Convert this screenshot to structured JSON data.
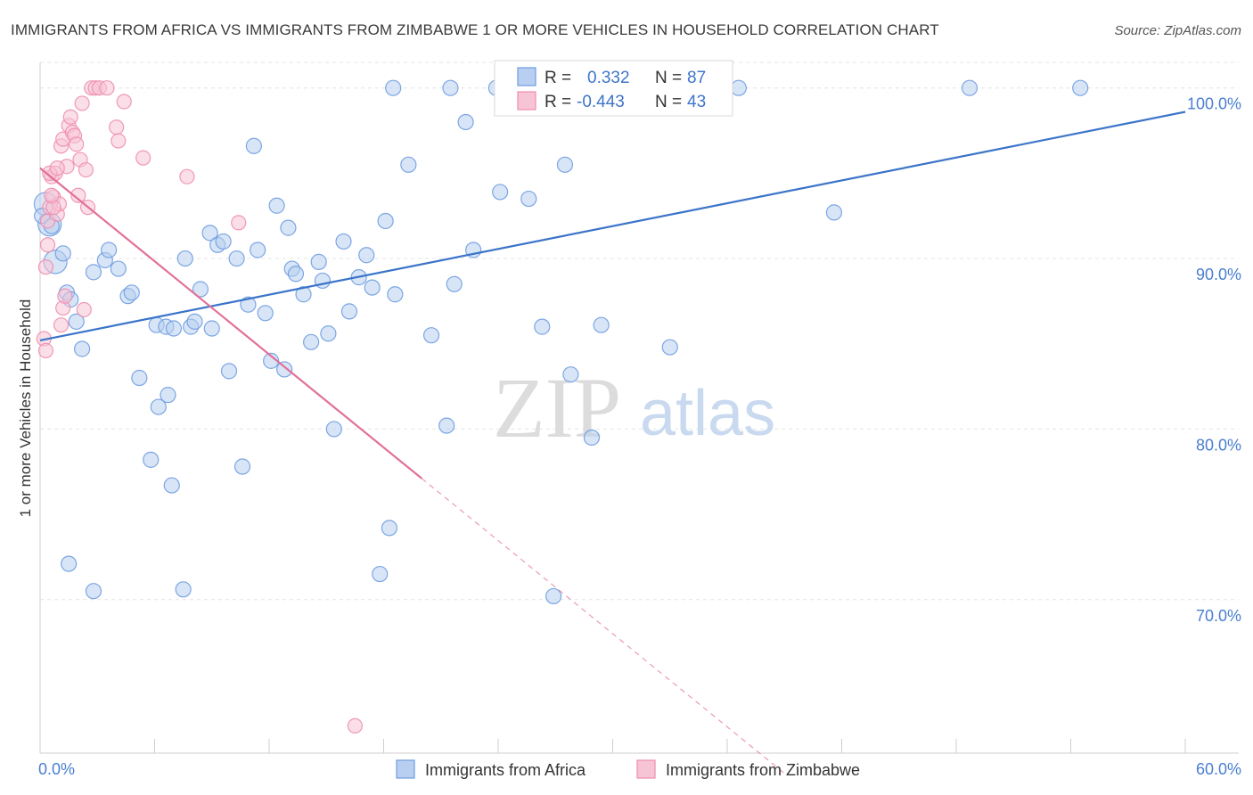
{
  "chart_data": {
    "type": "scatter",
    "title": "IMMIGRANTS FROM AFRICA VS IMMIGRANTS FROM ZIMBABWE 1 OR MORE VEHICLES IN HOUSEHOLD CORRELATION CHART",
    "source": "Source: ZipAtlas.com",
    "ylabel": "1 or more Vehicles in Household",
    "xlabel": "",
    "xlim": [
      0,
      60
    ],
    "ylim": [
      61,
      101.5
    ],
    "x_tick_labels": [
      "0.0%",
      "60.0%"
    ],
    "y_ticks": [
      70,
      80,
      90,
      100
    ],
    "y_tick_labels": [
      "70.0%",
      "80.0%",
      "90.0%",
      "100.0%"
    ],
    "grid": true,
    "legend_position": "top-center",
    "legend": [
      {
        "r_label": "R =",
        "r_value": "0.332",
        "n_label": "N =",
        "n_value": "87"
      },
      {
        "r_label": "R =",
        "r_value": "-0.443",
        "n_label": "N =",
        "n_value": "43"
      }
    ],
    "watermark": {
      "zip": "ZIP",
      "atlas": "atlas"
    },
    "series": [
      {
        "name": "Immigrants from Africa",
        "color": "#6f9de0",
        "fill": "#b8cff1",
        "trend": {
          "x": [
            0.0,
            60.0
          ],
          "y": [
            85.2,
            98.6
          ],
          "dashed_after": null
        },
        "points": [
          [
            0.3,
            93.2
          ],
          [
            0.5,
            92.0
          ],
          [
            0.8,
            89.8
          ],
          [
            1.2,
            90.3
          ],
          [
            1.4,
            88.0
          ],
          [
            1.6,
            87.6
          ],
          [
            1.9,
            86.3
          ],
          [
            2.2,
            84.7
          ],
          [
            2.8,
            89.2
          ],
          [
            3.4,
            89.9
          ],
          [
            3.6,
            90.5
          ],
          [
            4.1,
            89.4
          ],
          [
            4.6,
            87.8
          ],
          [
            4.8,
            88.0
          ],
          [
            5.2,
            83.0
          ],
          [
            5.8,
            78.2
          ],
          [
            6.1,
            86.1
          ],
          [
            6.6,
            86.0
          ],
          [
            6.9,
            76.7
          ],
          [
            7.0,
            85.9
          ],
          [
            7.6,
            90.0
          ],
          [
            7.9,
            86.0
          ],
          [
            8.1,
            86.3
          ],
          [
            8.4,
            88.2
          ],
          [
            8.9,
            91.5
          ],
          [
            9.3,
            90.8
          ],
          [
            9.6,
            91.0
          ],
          [
            9.9,
            83.4
          ],
          [
            10.3,
            90.0
          ],
          [
            10.6,
            77.8
          ],
          [
            10.9,
            87.3
          ],
          [
            11.2,
            96.6
          ],
          [
            11.4,
            90.5
          ],
          [
            11.8,
            86.8
          ],
          [
            12.1,
            84.0
          ],
          [
            12.4,
            93.1
          ],
          [
            12.8,
            83.5
          ],
          [
            13.0,
            91.8
          ],
          [
            13.2,
            89.4
          ],
          [
            13.4,
            89.1
          ],
          [
            13.8,
            87.9
          ],
          [
            14.2,
            85.1
          ],
          [
            14.6,
            89.8
          ],
          [
            14.8,
            88.7
          ],
          [
            15.1,
            85.6
          ],
          [
            15.4,
            80.0
          ],
          [
            15.9,
            91.0
          ],
          [
            16.2,
            86.9
          ],
          [
            16.7,
            88.9
          ],
          [
            17.1,
            90.2
          ],
          [
            17.4,
            88.3
          ],
          [
            17.8,
            71.5
          ],
          [
            18.1,
            92.2
          ],
          [
            18.3,
            74.2
          ],
          [
            18.6,
            87.9
          ],
          [
            19.3,
            95.5
          ],
          [
            20.5,
            85.5
          ],
          [
            21.3,
            80.2
          ],
          [
            21.7,
            88.5
          ],
          [
            22.3,
            98.0
          ],
          [
            22.7,
            90.5
          ],
          [
            24.1,
            93.9
          ],
          [
            25.6,
            93.5
          ],
          [
            26.3,
            86.0
          ],
          [
            26.9,
            70.2
          ],
          [
            27.5,
            95.5
          ],
          [
            27.8,
            83.2
          ],
          [
            28.9,
            79.5
          ],
          [
            29.4,
            86.1
          ],
          [
            33.0,
            84.8
          ],
          [
            36.6,
            100.0
          ],
          [
            41.6,
            92.7
          ],
          [
            48.7,
            100.0
          ],
          [
            54.5,
            100.0
          ],
          [
            18.5,
            100.0
          ],
          [
            21.5,
            100.0
          ],
          [
            25.2,
            100.0
          ],
          [
            23.9,
            100.0
          ],
          [
            35.0,
            100.0
          ],
          [
            1.5,
            72.1
          ],
          [
            2.8,
            70.5
          ],
          [
            6.2,
            81.3
          ],
          [
            6.7,
            82.0
          ],
          [
            7.5,
            70.6
          ],
          [
            9.0,
            85.9
          ],
          [
            0.1,
            92.5
          ],
          [
            0.6,
            91.9
          ]
        ]
      },
      {
        "name": "Immigrants from Zimbabwe",
        "color": "#ee8eae",
        "fill": "#f7c4d5",
        "trend": {
          "x": [
            0.0,
            20.0
          ],
          "y": [
            95.3,
            77.1
          ],
          "dashed_after": [
            20.0,
            39.0,
            60.0
          ]
        },
        "points": [
          [
            0.2,
            85.3
          ],
          [
            0.3,
            84.6
          ],
          [
            0.3,
            89.5
          ],
          [
            0.4,
            90.8
          ],
          [
            0.4,
            92.2
          ],
          [
            0.5,
            93.0
          ],
          [
            0.6,
            94.8
          ],
          [
            0.7,
            93.6
          ],
          [
            0.8,
            95.0
          ],
          [
            0.9,
            92.6
          ],
          [
            1.0,
            93.2
          ],
          [
            1.1,
            96.6
          ],
          [
            1.2,
            97.0
          ],
          [
            1.2,
            87.1
          ],
          [
            1.3,
            87.8
          ],
          [
            1.4,
            95.4
          ],
          [
            1.5,
            97.8
          ],
          [
            1.6,
            98.3
          ],
          [
            1.7,
            97.4
          ],
          [
            1.8,
            97.2
          ],
          [
            1.9,
            96.7
          ],
          [
            2.0,
            93.7
          ],
          [
            2.1,
            95.8
          ],
          [
            2.2,
            99.1
          ],
          [
            2.3,
            87.0
          ],
          [
            2.4,
            95.2
          ],
          [
            2.5,
            93.0
          ],
          [
            2.7,
            100.0
          ],
          [
            2.9,
            100.0
          ],
          [
            3.1,
            100.0
          ],
          [
            3.5,
            100.0
          ],
          [
            4.0,
            97.7
          ],
          [
            4.1,
            96.9
          ],
          [
            4.4,
            99.2
          ],
          [
            5.4,
            95.9
          ],
          [
            7.7,
            94.8
          ],
          [
            10.4,
            92.1
          ],
          [
            16.5,
            62.6
          ],
          [
            0.5,
            95.0
          ],
          [
            0.7,
            93.0
          ],
          [
            0.9,
            95.3
          ],
          [
            1.1,
            86.1
          ],
          [
            0.6,
            93.7
          ]
        ]
      }
    ]
  }
}
